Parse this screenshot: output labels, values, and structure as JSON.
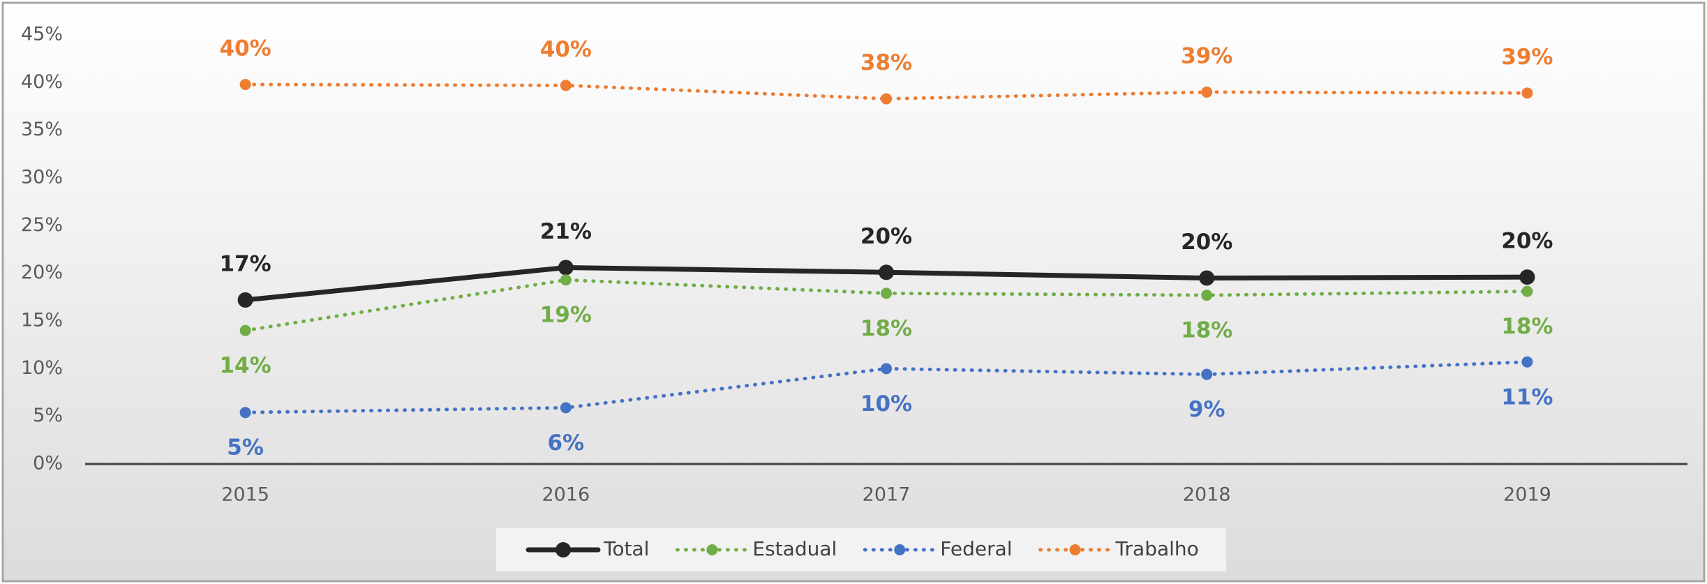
{
  "chart_data": {
    "type": "line",
    "categories": [
      "2015",
      "2016",
      "2017",
      "2018",
      "2019"
    ],
    "series": [
      {
        "name": "Total",
        "color": "#262626",
        "line_style": "solid",
        "label_position": "above",
        "values": [
          17.2,
          20.6,
          20.1,
          19.5,
          19.6
        ],
        "value_labels": [
          "17%",
          "21%",
          "20%",
          "20%",
          "20%"
        ]
      },
      {
        "name": "Estadual",
        "color": "#70ad47",
        "line_style": "dotted",
        "label_position": "below",
        "values": [
          14.0,
          19.3,
          17.9,
          17.7,
          18.1
        ],
        "value_labels": [
          "14%",
          "19%",
          "18%",
          "18%",
          "18%"
        ]
      },
      {
        "name": "Federal",
        "color": "#4472c4",
        "line_style": "dotted",
        "label_position": "below",
        "values": [
          5.4,
          5.9,
          10.0,
          9.4,
          10.7
        ],
        "value_labels": [
          "5%",
          "6%",
          "10%",
          "9%",
          "11%"
        ]
      },
      {
        "name": "Trabalho",
        "color": "#ed7d31",
        "line_style": "dotted",
        "label_position": "above",
        "values": [
          39.8,
          39.7,
          38.3,
          39.0,
          38.9
        ],
        "value_labels": [
          "40%",
          "40%",
          "38%",
          "39%",
          "39%"
        ]
      }
    ],
    "ylim": [
      0,
      45
    ],
    "yticks": [
      {
        "value": 0,
        "label": "0%"
      },
      {
        "value": 5,
        "label": "5%"
      },
      {
        "value": 10,
        "label": "10%"
      },
      {
        "value": 15,
        "label": "15%"
      },
      {
        "value": 20,
        "label": "20%"
      },
      {
        "value": 25,
        "label": "25%"
      },
      {
        "value": 30,
        "label": "30%"
      },
      {
        "value": 35,
        "label": "35%"
      },
      {
        "value": 40,
        "label": "40%"
      },
      {
        "value": 45,
        "label": "45%"
      }
    ],
    "legend": "bottom"
  }
}
